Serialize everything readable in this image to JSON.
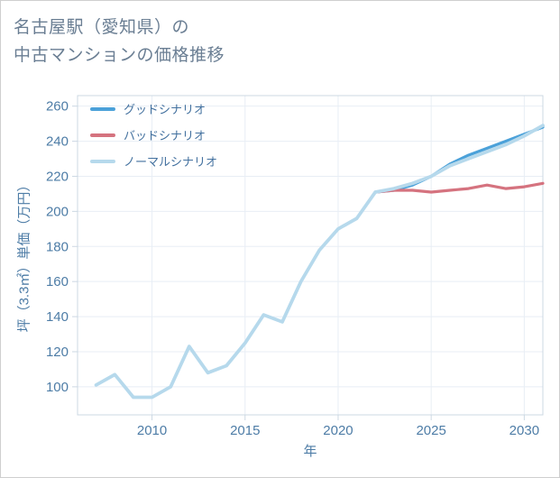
{
  "chart_data": {
    "type": "line",
    "title": "名古屋駅（愛知県）の中古マンションの価格推移",
    "title_lines": [
      "名古屋駅（愛知県）の",
      "中古マンションの価格推移"
    ],
    "xlabel": "年",
    "ylabel": "坪（3.3㎡）単価（万円）",
    "xlim": [
      2006,
      2031
    ],
    "ylim": [
      84,
      266
    ],
    "x_ticks": [
      2010,
      2015,
      2020,
      2025,
      2030
    ],
    "y_ticks": [
      100,
      120,
      140,
      160,
      180,
      200,
      220,
      240,
      260
    ],
    "grid": true,
    "legend_position": "top-left-inside",
    "colors": {
      "good": "#4ba1d9",
      "bad": "#d5737f",
      "normal": "#b6d9ec",
      "grid": "#e8eef5",
      "axis": "#ccd8e3",
      "tick_text": "#4d7ca6",
      "title_text": "#6a7e93",
      "legend_text": "#43719f"
    },
    "series": [
      {
        "id": "good",
        "name": "グッドシナリオ",
        "color": "#4ba1d9",
        "x": [
          2022,
          2023,
          2024,
          2025,
          2026,
          2027,
          2028,
          2029,
          2030,
          2031
        ],
        "y": [
          211,
          212,
          215,
          220,
          227,
          232,
          236,
          240,
          244,
          248
        ]
      },
      {
        "id": "bad",
        "name": "バッドシナリオ",
        "color": "#d5737f",
        "x": [
          2022,
          2023,
          2024,
          2025,
          2026,
          2027,
          2028,
          2029,
          2030,
          2031
        ],
        "y": [
          211,
          212,
          212,
          211,
          212,
          213,
          215,
          213,
          214,
          216
        ]
      },
      {
        "id": "normal",
        "name": "ノーマルシナリオ",
        "color": "#b6d9ec",
        "x": [
          2007,
          2008,
          2009,
          2010,
          2011,
          2012,
          2013,
          2014,
          2015,
          2016,
          2017,
          2018,
          2019,
          2020,
          2021,
          2022,
          2023,
          2024,
          2025,
          2026,
          2027,
          2028,
          2029,
          2030,
          2031
        ],
        "y": [
          101,
          107,
          94,
          94,
          100,
          123,
          108,
          112,
          125,
          141,
          137,
          160,
          178,
          190,
          196,
          211,
          213,
          216,
          220,
          226,
          230,
          234,
          238,
          243,
          249
        ]
      }
    ]
  }
}
